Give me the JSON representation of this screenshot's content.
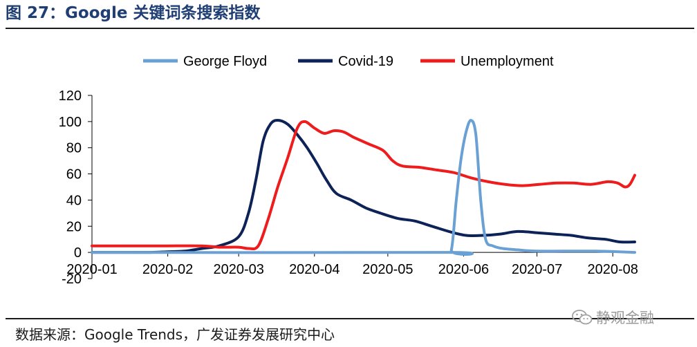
{
  "header": {
    "title": "图 27：Google 关键词条搜索指数"
  },
  "footer": {
    "source": "数据来源：Google Trends，广发证券发展研究中心",
    "watermark": "静观金融"
  },
  "colors": {
    "george_floyd": "#6aa0d4",
    "covid": "#0d2256",
    "unemployment": "#ee1c1c",
    "title": "#1f3f74"
  },
  "chart_data": {
    "type": "line",
    "title": "",
    "xlabel": "",
    "ylabel": "",
    "ylim": [
      -20,
      120
    ],
    "yticks": [
      -20,
      0,
      20,
      40,
      60,
      80,
      100,
      120
    ],
    "xlim": [
      "2020-01-01",
      "2020-08-10"
    ],
    "xticks": [
      "2020-01",
      "2020-02",
      "2020-03",
      "2020-04",
      "2020-05",
      "2020-06",
      "2020-07",
      "2020-08"
    ],
    "grid": false,
    "legend": "top",
    "series": [
      {
        "name": "George Floyd",
        "color": "#6aa0d4",
        "points": [
          [
            "2020-01-01",
            0
          ],
          [
            "2020-05-24",
            0
          ],
          [
            "2020-05-27",
            2
          ],
          [
            "2020-05-29",
            40
          ],
          [
            "2020-05-31",
            72
          ],
          [
            "2020-06-02",
            92
          ],
          [
            "2020-06-04",
            101
          ],
          [
            "2020-06-06",
            90
          ],
          [
            "2020-06-08",
            40
          ],
          [
            "2020-06-10",
            10
          ],
          [
            "2020-06-13",
            5
          ],
          [
            "2020-06-17",
            3
          ],
          [
            "2020-06-23",
            2
          ],
          [
            "2020-07-01",
            1
          ],
          [
            "2020-07-25",
            1
          ],
          [
            "2020-08-10",
            0
          ]
        ]
      },
      {
        "name": "Covid-19",
        "color": "#0d2256",
        "points": [
          [
            "2020-01-01",
            0
          ],
          [
            "2020-01-15",
            0
          ],
          [
            "2020-01-25",
            0
          ],
          [
            "2020-02-01",
            0.5
          ],
          [
            "2020-02-08",
            1
          ],
          [
            "2020-02-15",
            3
          ],
          [
            "2020-02-22",
            5
          ],
          [
            "2020-03-01",
            12
          ],
          [
            "2020-03-05",
            30
          ],
          [
            "2020-03-08",
            55
          ],
          [
            "2020-03-11",
            85
          ],
          [
            "2020-03-14",
            98
          ],
          [
            "2020-03-17",
            101
          ],
          [
            "2020-03-21",
            98
          ],
          [
            "2020-03-25",
            90
          ],
          [
            "2020-03-29",
            80
          ],
          [
            "2020-04-02",
            68
          ],
          [
            "2020-04-06",
            55
          ],
          [
            "2020-04-10",
            45
          ],
          [
            "2020-04-16",
            40
          ],
          [
            "2020-04-22",
            34
          ],
          [
            "2020-04-28",
            30
          ],
          [
            "2020-05-05",
            26
          ],
          [
            "2020-05-12",
            24
          ],
          [
            "2020-05-19",
            20
          ],
          [
            "2020-05-26",
            16
          ],
          [
            "2020-06-02",
            13
          ],
          [
            "2020-06-09",
            13
          ],
          [
            "2020-06-16",
            14
          ],
          [
            "2020-06-23",
            16
          ],
          [
            "2020-07-01",
            15
          ],
          [
            "2020-07-08",
            14
          ],
          [
            "2020-07-15",
            13
          ],
          [
            "2020-07-22",
            11
          ],
          [
            "2020-07-29",
            10
          ],
          [
            "2020-08-04",
            8
          ],
          [
            "2020-08-10",
            8
          ]
        ]
      },
      {
        "name": "Unemployment",
        "color": "#ee1c1c",
        "points": [
          [
            "2020-01-01",
            5
          ],
          [
            "2020-01-15",
            5
          ],
          [
            "2020-02-01",
            5
          ],
          [
            "2020-02-15",
            5
          ],
          [
            "2020-02-22",
            4
          ],
          [
            "2020-03-01",
            4
          ],
          [
            "2020-03-05",
            3
          ],
          [
            "2020-03-09",
            5
          ],
          [
            "2020-03-13",
            25
          ],
          [
            "2020-03-17",
            50
          ],
          [
            "2020-03-21",
            72
          ],
          [
            "2020-03-25",
            95
          ],
          [
            "2020-03-28",
            100
          ],
          [
            "2020-04-01",
            95
          ],
          [
            "2020-04-05",
            91
          ],
          [
            "2020-04-09",
            93
          ],
          [
            "2020-04-13",
            92
          ],
          [
            "2020-04-17",
            88
          ],
          [
            "2020-04-23",
            83
          ],
          [
            "2020-04-29",
            78
          ],
          [
            "2020-05-03",
            70
          ],
          [
            "2020-05-07",
            66
          ],
          [
            "2020-05-14",
            65
          ],
          [
            "2020-05-21",
            63
          ],
          [
            "2020-05-28",
            61
          ],
          [
            "2020-06-04",
            57
          ],
          [
            "2020-06-11",
            54
          ],
          [
            "2020-06-18",
            52
          ],
          [
            "2020-06-25",
            51
          ],
          [
            "2020-07-02",
            52
          ],
          [
            "2020-07-09",
            53
          ],
          [
            "2020-07-16",
            53
          ],
          [
            "2020-07-23",
            52
          ],
          [
            "2020-07-30",
            54
          ],
          [
            "2020-08-03",
            53
          ],
          [
            "2020-08-06",
            50
          ],
          [
            "2020-08-08",
            52
          ],
          [
            "2020-08-10",
            59
          ]
        ]
      }
    ]
  }
}
